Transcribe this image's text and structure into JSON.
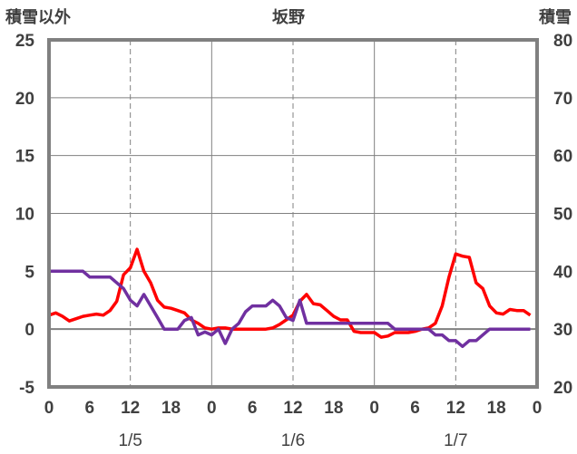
{
  "chart_data": {
    "type": "line",
    "title": "坂野",
    "left_axis_label": "積雪以外",
    "right_axis_label": "積雪",
    "y_left": {
      "min": -5,
      "max": 25,
      "ticks": [
        25,
        20,
        15,
        10,
        5,
        0,
        -5
      ]
    },
    "y_right": {
      "min": 20,
      "max": 80,
      "ticks": [
        80,
        70,
        60,
        50,
        40,
        30,
        20
      ]
    },
    "x": {
      "min": 0,
      "max": 72,
      "major_every": 6,
      "tick_labels": [
        "0",
        "6",
        "12",
        "18",
        "0",
        "6",
        "12",
        "18",
        "0",
        "6",
        "12",
        "18",
        "0"
      ],
      "day_labels": [
        {
          "label": "1/5",
          "hour": 12
        },
        {
          "label": "1/6",
          "hour": 36
        },
        {
          "label": "1/7",
          "hour": 60
        }
      ],
      "solid_dividers": [
        24,
        48
      ],
      "dashed_lines": [
        12,
        36,
        60
      ]
    },
    "grid": true,
    "colors": {
      "red_series": "#ff0000",
      "purple_series": "#7030a0",
      "frame": "#808080",
      "grid": "#808080",
      "text": "#404040"
    },
    "series": [
      {
        "axis": "left",
        "color": "#ff0000",
        "points": [
          [
            0,
            1.2
          ],
          [
            1,
            1.4
          ],
          [
            2,
            1.1
          ],
          [
            3,
            0.7
          ],
          [
            4,
            0.9
          ],
          [
            5,
            1.1
          ],
          [
            6,
            1.2
          ],
          [
            7,
            1.3
          ],
          [
            8,
            1.2
          ],
          [
            9,
            1.6
          ],
          [
            10,
            2.4
          ],
          [
            11,
            4.7
          ],
          [
            12,
            5.3
          ],
          [
            13,
            6.9
          ],
          [
            14,
            5.0
          ],
          [
            15,
            4.0
          ],
          [
            16,
            2.5
          ],
          [
            17,
            1.9
          ],
          [
            18,
            1.8
          ],
          [
            19,
            1.6
          ],
          [
            20,
            1.4
          ],
          [
            21,
            0.8
          ],
          [
            22,
            0.5
          ],
          [
            23,
            0.1
          ],
          [
            24,
            0.0
          ],
          [
            25,
            0.1
          ],
          [
            26,
            0.1
          ],
          [
            27,
            0.0
          ],
          [
            28,
            0.0
          ],
          [
            29,
            0.0
          ],
          [
            30,
            0.0
          ],
          [
            31,
            0.0
          ],
          [
            32,
            0.0
          ],
          [
            33,
            0.1
          ],
          [
            34,
            0.4
          ],
          [
            35,
            0.8
          ],
          [
            36,
            1.2
          ],
          [
            37,
            2.4
          ],
          [
            38,
            3.0
          ],
          [
            39,
            2.2
          ],
          [
            40,
            2.1
          ],
          [
            41,
            1.6
          ],
          [
            42,
            1.1
          ],
          [
            43,
            0.8
          ],
          [
            44,
            0.8
          ],
          [
            45,
            -0.2
          ],
          [
            46,
            -0.3
          ],
          [
            47,
            -0.3
          ],
          [
            48,
            -0.3
          ],
          [
            49,
            -0.7
          ],
          [
            50,
            -0.6
          ],
          [
            51,
            -0.3
          ],
          [
            52,
            -0.3
          ],
          [
            53,
            -0.3
          ],
          [
            54,
            -0.2
          ],
          [
            55,
            0.0
          ],
          [
            56,
            0.1
          ],
          [
            57,
            0.5
          ],
          [
            58,
            2.0
          ],
          [
            59,
            4.5
          ],
          [
            60,
            6.5
          ],
          [
            61,
            6.3
          ],
          [
            62,
            6.2
          ],
          [
            63,
            4.0
          ],
          [
            64,
            3.5
          ],
          [
            65,
            2.0
          ],
          [
            66,
            1.4
          ],
          [
            67,
            1.3
          ],
          [
            68,
            1.7
          ],
          [
            69,
            1.6
          ],
          [
            70,
            1.6
          ],
          [
            71,
            1.2
          ]
        ]
      },
      {
        "axis": "right",
        "color": "#7030a0",
        "points": [
          [
            0,
            40
          ],
          [
            1,
            40
          ],
          [
            2,
            40
          ],
          [
            3,
            40
          ],
          [
            4,
            40
          ],
          [
            5,
            40
          ],
          [
            6,
            39
          ],
          [
            7,
            39
          ],
          [
            8,
            39
          ],
          [
            9,
            39
          ],
          [
            10,
            38
          ],
          [
            11,
            37
          ],
          [
            12,
            35
          ],
          [
            13,
            34
          ],
          [
            14,
            36
          ],
          [
            15,
            34
          ],
          [
            16,
            32
          ],
          [
            17,
            30
          ],
          [
            18,
            30
          ],
          [
            19,
            30
          ],
          [
            20,
            31.5
          ],
          [
            21,
            32
          ],
          [
            22,
            29
          ],
          [
            23,
            29.5
          ],
          [
            24,
            29
          ],
          [
            25,
            30
          ],
          [
            26,
            27.5
          ],
          [
            27,
            30
          ],
          [
            28,
            31
          ],
          [
            29,
            33
          ],
          [
            30,
            34
          ],
          [
            31,
            34
          ],
          [
            32,
            34
          ],
          [
            33,
            35
          ],
          [
            34,
            34
          ],
          [
            35,
            32
          ],
          [
            36,
            31.5
          ],
          [
            37,
            35
          ],
          [
            38,
            31
          ],
          [
            39,
            31
          ],
          [
            40,
            31
          ],
          [
            41,
            31
          ],
          [
            42,
            31
          ],
          [
            43,
            31
          ],
          [
            44,
            31
          ],
          [
            45,
            31
          ],
          [
            46,
            31
          ],
          [
            47,
            31
          ],
          [
            48,
            31
          ],
          [
            49,
            31
          ],
          [
            50,
            31
          ],
          [
            51,
            30
          ],
          [
            52,
            30
          ],
          [
            53,
            30
          ],
          [
            54,
            30
          ],
          [
            55,
            30
          ],
          [
            56,
            30
          ],
          [
            57,
            29
          ],
          [
            58,
            29
          ],
          [
            59,
            28
          ],
          [
            60,
            28
          ],
          [
            61,
            27
          ],
          [
            62,
            28
          ],
          [
            63,
            28
          ],
          [
            64,
            29
          ],
          [
            65,
            30
          ],
          [
            66,
            30
          ],
          [
            67,
            30
          ],
          [
            68,
            30
          ],
          [
            69,
            30
          ],
          [
            70,
            30
          ],
          [
            71,
            30
          ]
        ]
      }
    ]
  }
}
